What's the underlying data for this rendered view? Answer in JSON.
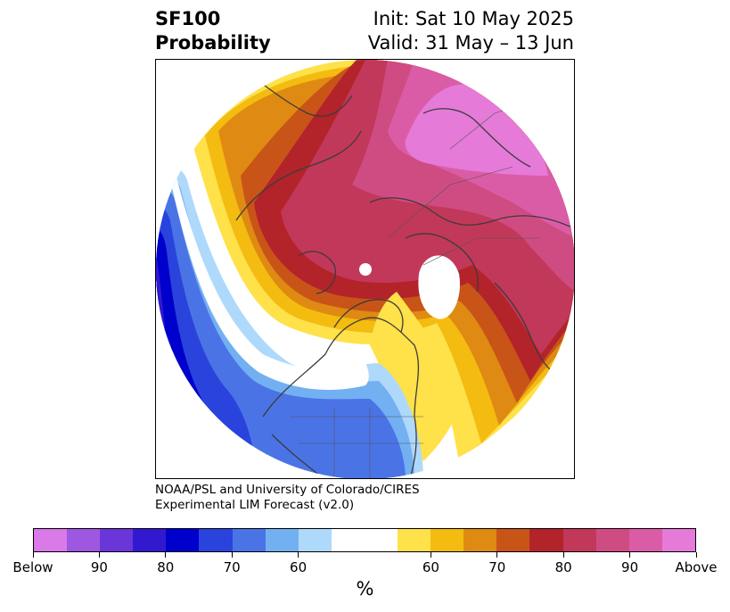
{
  "title": {
    "left_line1": "SF100",
    "left_line2": "Probability",
    "right_line1": "Init: Sat 10 May 2025",
    "right_line2": "Valid: 31 May – 13 Jun"
  },
  "credit": {
    "line1": "NOAA/PSL and University of Colorado/CIRES",
    "line2": "Experimental LIM Forecast (v2.0)"
  },
  "colorbar": {
    "unit": "%",
    "colors": [
      "#d97ae8",
      "#9e57e0",
      "#6a36d8",
      "#3219d0",
      "#0000cc",
      "#2a43dc",
      "#4a74e6",
      "#73b0f2",
      "#aed9fb",
      "#ffffff",
      "#ffe14a",
      "#f4bb10",
      "#df8a12",
      "#c85418",
      "#b3232a",
      "#c2385a",
      "#cf4c82",
      "#db5ca6",
      "#e57ad8"
    ],
    "tick_labels": [
      "Below",
      "90",
      "80",
      "70",
      "60",
      "60",
      "70",
      "80",
      "90",
      "Above"
    ]
  },
  "map": {
    "projection": "north-polar-stereographic",
    "region": "Northern Hemisphere extratropics"
  }
}
